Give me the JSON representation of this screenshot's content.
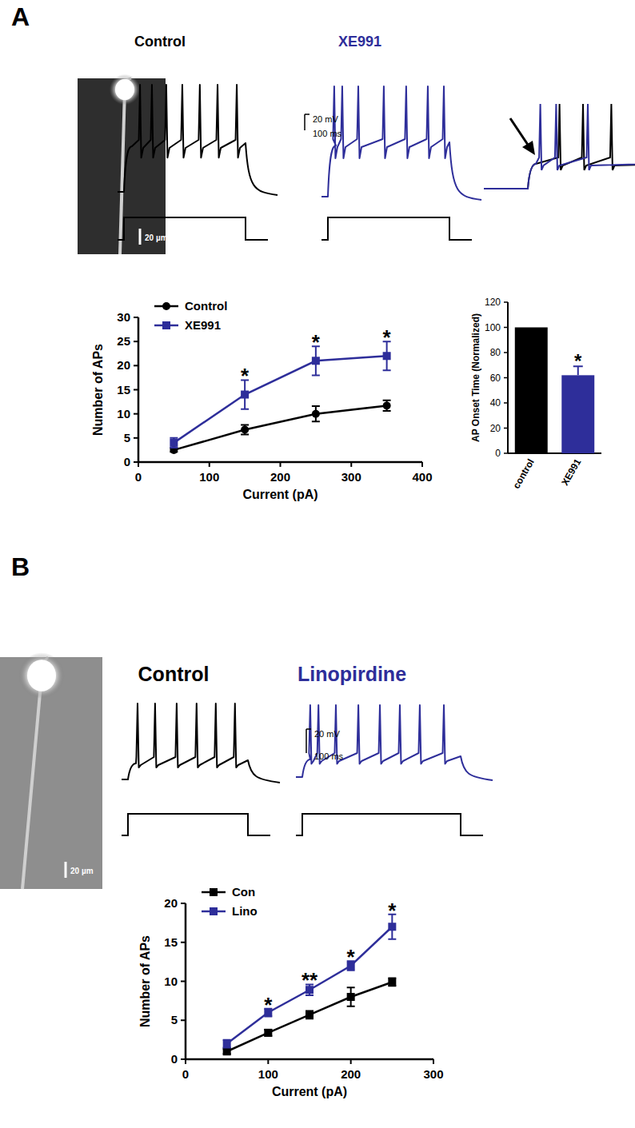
{
  "panels": [
    {
      "label": "A",
      "image_scale": "20 µm",
      "scale_bar": {
        "voltage": "20 mV",
        "time": "100 ms"
      },
      "step_ms": 500,
      "traces": [
        {
          "label": "Control",
          "color": "#000000",
          "spikes_ms": [
            66,
            115,
            174,
            240,
            312,
            385,
            464
          ]
        },
        {
          "label": "XE991",
          "color": "#2e2e9a",
          "spikes_ms": [
            26,
            59,
            125,
            230,
            322,
            411,
            477
          ]
        }
      ]
    },
    {
      "label": "B",
      "image_scale": "20 µm",
      "scale_bar": {
        "voltage": "20 mV",
        "time": "100 ms"
      },
      "step_ms": 500,
      "traces": [
        {
          "label": "Control",
          "color": "#000000",
          "spikes_ms": [
            40,
            113,
            203,
            286,
            366,
            446
          ]
        },
        {
          "label": "Linopirdine",
          "color": "#2e2e9a",
          "spikes_ms": [
            25,
            51,
            106,
            177,
            245,
            308,
            371,
            447
          ]
        }
      ]
    }
  ],
  "chart_data": [
    {
      "type": "line",
      "x_label": "Current (pA)",
      "y_label": "Number of APs",
      "x": [
        50,
        150,
        250,
        350
      ],
      "xlim": [
        0,
        400
      ],
      "xticks": [
        0,
        100,
        200,
        300,
        400
      ],
      "ylim": [
        0,
        30
      ],
      "yticks": [
        0,
        5,
        10,
        15,
        20,
        25,
        30
      ],
      "legend": "upper left",
      "series": [
        {
          "name": "Control",
          "color": "#000000",
          "marker": "circle",
          "values": [
            2.5,
            6.7,
            10,
            11.7
          ],
          "errors": [
            0.4,
            1,
            1.6,
            1.1
          ]
        },
        {
          "name": "XE991",
          "color": "#2e2e9a",
          "marker": "square",
          "values": [
            4,
            14,
            21,
            22
          ],
          "errors": [
            1,
            3,
            3,
            3
          ]
        }
      ],
      "annotations": [
        {
          "x": 150,
          "text": "*"
        },
        {
          "x": 250,
          "text": "*"
        },
        {
          "x": 350,
          "text": "*"
        }
      ]
    },
    {
      "type": "bar",
      "y_label": "AP Onset Time (Normalized)",
      "categories": [
        "control",
        "XE991"
      ],
      "values": [
        100,
        62
      ],
      "errors": [
        null,
        7
      ],
      "colors": [
        "#000000",
        "#2e2e9a"
      ],
      "ylim": [
        0,
        120
      ],
      "yticks": [
        0,
        20,
        40,
        60,
        80,
        100,
        120
      ],
      "annotations": [
        {
          "category": "XE991",
          "text": "*"
        }
      ]
    },
    {
      "type": "line",
      "x_label": "Current (pA)",
      "y_label": "Number of APs",
      "x": [
        50,
        100,
        150,
        200,
        250
      ],
      "xlim": [
        0,
        300
      ],
      "xticks": [
        0,
        100,
        200,
        300
      ],
      "ylim": [
        0,
        20
      ],
      "yticks": [
        0,
        5,
        10,
        15,
        20
      ],
      "legend": "upper left",
      "series": [
        {
          "name": "Con",
          "color": "#000000",
          "marker": "square",
          "values": [
            1,
            3.4,
            5.7,
            8,
            9.9
          ],
          "errors": [
            0.3,
            0.4,
            0.5,
            1.2,
            0.5
          ]
        },
        {
          "name": "Lino",
          "color": "#2e2e9a",
          "marker": "square",
          "values": [
            2,
            6,
            8.9,
            12,
            17
          ],
          "errors": [
            0.5,
            0.5,
            0.7,
            0.6,
            1.6
          ]
        }
      ],
      "annotations": [
        {
          "x": 100,
          "text": "*"
        },
        {
          "x": 150,
          "text": "**"
        },
        {
          "x": 200,
          "text": "*"
        },
        {
          "x": 250,
          "text": "*"
        }
      ]
    }
  ]
}
